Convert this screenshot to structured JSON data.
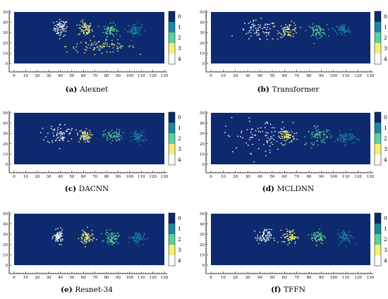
{
  "chart_data": [
    {
      "type": "scatter",
      "letter": "(a)",
      "title": "Alexnet",
      "x_ticks": [
        "0",
        "10",
        "20",
        "30",
        "40",
        "50",
        "60",
        "70",
        "80",
        "90",
        "100",
        "110",
        "120",
        "130"
      ],
      "y_ticks": [
        "0",
        "10",
        "20",
        "30",
        "40",
        "50"
      ],
      "xlim": [
        0,
        130
      ],
      "ylim": [
        0,
        50
      ],
      "colorbar_labels": [
        "0",
        "1",
        "2",
        "3",
        "4"
      ],
      "series": [
        {
          "name": "4",
          "center": [
            40,
            35
          ],
          "spread": [
            3,
            4
          ]
        },
        {
          "name": "3",
          "center": [
            61,
            34
          ],
          "spread": [
            3,
            3.5
          ]
        },
        {
          "name": "2",
          "center": [
            83,
            33
          ],
          "spread": [
            3,
            3
          ]
        },
        {
          "name": "1",
          "center": [
            104,
            33
          ],
          "spread": [
            3,
            3
          ]
        },
        {
          "name": "3",
          "center": [
            75,
            17
          ],
          "spread": [
            15,
            3
          ]
        }
      ]
    },
    {
      "type": "scatter",
      "letter": "(b)",
      "title": "Transformer",
      "x_ticks": [
        "0",
        "10",
        "20",
        "30",
        "40",
        "50",
        "60",
        "70",
        "80",
        "90",
        "100",
        "110",
        "120",
        "130"
      ],
      "y_ticks": [
        "0",
        "10",
        "20",
        "30",
        "40",
        "50"
      ],
      "xlim": [
        0,
        130
      ],
      "ylim": [
        0,
        50
      ],
      "colorbar_labels": [
        "0",
        "1",
        "2",
        "3",
        "4"
      ],
      "series": [
        {
          "name": "4",
          "center": [
            38,
            32
          ],
          "spread": [
            8,
            5
          ]
        },
        {
          "name": "3",
          "center": [
            63,
            33
          ],
          "spread": [
            4,
            3.5
          ]
        },
        {
          "name": "2",
          "center": [
            86,
            32
          ],
          "spread": [
            4,
            3
          ]
        },
        {
          "name": "1",
          "center": [
            107,
            33
          ],
          "spread": [
            3,
            3
          ]
        }
      ]
    },
    {
      "type": "scatter",
      "letter": "(c)",
      "title": "DACNN",
      "x_ticks": [
        "0",
        "10",
        "20",
        "30",
        "40",
        "50",
        "60",
        "70",
        "80",
        "90",
        "100",
        "110",
        "120",
        "130"
      ],
      "y_ticks": [
        "0",
        "10",
        "20",
        "30",
        "40",
        "50"
      ],
      "xlim": [
        0,
        130
      ],
      "ylim": [
        0,
        50
      ],
      "colorbar_labels": [
        "0",
        "1",
        "2",
        "3",
        "4"
      ],
      "series": [
        {
          "name": "4",
          "center": [
            40,
            30
          ],
          "spread": [
            6,
            5
          ]
        },
        {
          "name": "3",
          "center": [
            60,
            28
          ],
          "spread": [
            3,
            3
          ]
        },
        {
          "name": "2",
          "center": [
            85,
            28
          ],
          "spread": [
            4,
            3
          ]
        },
        {
          "name": "1",
          "center": [
            107,
            27
          ],
          "spread": [
            3,
            3
          ]
        }
      ]
    },
    {
      "type": "scatter",
      "letter": "(d)",
      "title": "MCLDNN",
      "x_ticks": [
        "0",
        "10",
        "20",
        "30",
        "40",
        "50",
        "60",
        "70",
        "80",
        "90",
        "100",
        "110",
        "120",
        "130"
      ],
      "y_ticks": [
        "0",
        "10",
        "20",
        "30",
        "40",
        "50"
      ],
      "xlim": [
        0,
        130
      ],
      "ylim": [
        0,
        50
      ],
      "colorbar_labels": [
        "0",
        "1",
        "2",
        "3",
        "4"
      ],
      "series": [
        {
          "name": "4",
          "center": [
            42,
            28
          ],
          "spread": [
            16,
            8
          ]
        },
        {
          "name": "3",
          "center": [
            62,
            28
          ],
          "spread": [
            3,
            3
          ]
        },
        {
          "name": "2",
          "center": [
            88,
            28
          ],
          "spread": [
            5,
            4
          ]
        },
        {
          "name": "1",
          "center": [
            109,
            26
          ],
          "spread": [
            4,
            3
          ]
        }
      ]
    },
    {
      "type": "scatter",
      "letter": "(e)",
      "title": "Resnet-34",
      "x_ticks": [
        "0",
        "10",
        "20",
        "30",
        "40",
        "50",
        "60",
        "70",
        "80",
        "90",
        "100",
        "110",
        "120",
        "130"
      ],
      "y_ticks": [
        "0",
        "10",
        "20",
        "30",
        "40",
        "50"
      ],
      "xlim": [
        0,
        130
      ],
      "ylim": [
        0,
        50
      ],
      "colorbar_labels": [
        "0",
        "1",
        "2",
        "3",
        "4"
      ],
      "series": [
        {
          "name": "4",
          "center": [
            38,
            28
          ],
          "spread": [
            2,
            3
          ]
        },
        {
          "name": "3",
          "center": [
            62,
            27
          ],
          "spread": [
            3,
            4
          ]
        },
        {
          "name": "2",
          "center": [
            84,
            27
          ],
          "spread": [
            3,
            3
          ]
        },
        {
          "name": "1",
          "center": [
            106,
            27
          ],
          "spread": [
            3,
            3
          ]
        }
      ]
    },
    {
      "type": "scatter",
      "letter": "(f)",
      "title": "TFFN",
      "x_ticks": [
        "0",
        "10",
        "20",
        "30",
        "40",
        "50",
        "60",
        "70",
        "80",
        "90",
        "100",
        "110",
        "120",
        "130"
      ],
      "y_ticks": [
        "0",
        "10",
        "20",
        "30",
        "40",
        "50"
      ],
      "xlim": [
        0,
        130
      ],
      "ylim": [
        0,
        50
      ],
      "colorbar_labels": [
        "0",
        "1",
        "2",
        "3",
        "4"
      ],
      "series": [
        {
          "name": "4",
          "center": [
            43,
            28
          ],
          "spread": [
            3,
            3.5
          ]
        },
        {
          "name": "3",
          "center": [
            64,
            28
          ],
          "spread": [
            3,
            3.5
          ]
        },
        {
          "name": "2",
          "center": [
            87,
            28
          ],
          "spread": [
            3,
            3.5
          ]
        },
        {
          "name": "1",
          "center": [
            109,
            28
          ],
          "spread": [
            3,
            3.5
          ]
        }
      ]
    }
  ],
  "colors": {
    "background": "#0d2a6e",
    "class0": "#0d2a6e",
    "class1": "#1b87a1",
    "class2": "#5cd197",
    "class3": "#f2f07a",
    "class4": "#ffffff"
  }
}
